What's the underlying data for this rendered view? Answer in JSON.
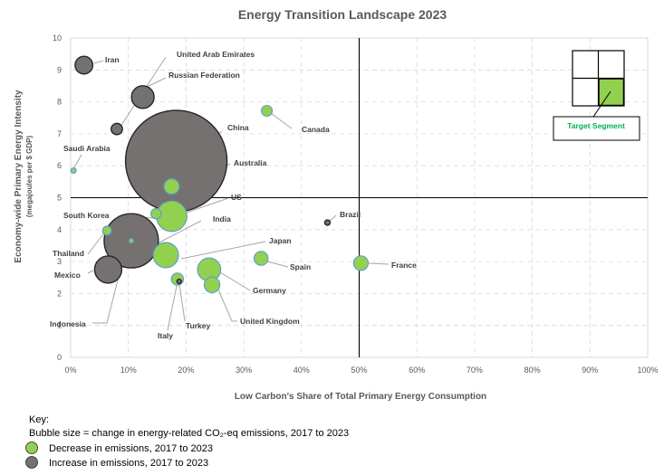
{
  "chart_data": {
    "type": "scatter",
    "title": "Energy Transition Landscape 2023",
    "xlabel": "Low Carbon's Share of Total Primary Energy Consumption",
    "ylabel": "Economy-wide Primary Energy Intensity",
    "ylabel_sub": "(megajoules per $ GDP)",
    "xlim": [
      0,
      100
    ],
    "ylim": [
      0,
      10
    ],
    "x_ticks": [
      "0%",
      "10%",
      "20%",
      "30%",
      "40%",
      "50%",
      "60%",
      "70%",
      "80%",
      "90%",
      "100%"
    ],
    "y_ticks": [
      "0",
      "1",
      "2",
      "3",
      "4",
      "5",
      "6",
      "7",
      "8",
      "9",
      "10"
    ],
    "quadrant_lines": {
      "x": 50,
      "y": 5
    },
    "grid": true,
    "colors": {
      "decrease": "#92d050",
      "increase": "#767171",
      "decrease_edge": "#5b9bd5",
      "increase_edge": "#262626",
      "target_text": "#00b050"
    },
    "series": [
      {
        "name": "Iran",
        "x": 2.3,
        "y": 9.15,
        "size": 0.32,
        "trend": "increase"
      },
      {
        "name": "United Arab Emirates",
        "x": 8.0,
        "y": 7.15,
        "size": 0.13,
        "trend": "increase"
      },
      {
        "name": "Russian Federation",
        "x": 12.5,
        "y": 8.15,
        "size": 0.52,
        "trend": "increase"
      },
      {
        "name": "Canada",
        "x": 34.0,
        "y": 7.72,
        "size": 0.12,
        "trend": "decrease"
      },
      {
        "name": "Saudi Arabia",
        "x": 0.5,
        "y": 5.85,
        "size": 0.03,
        "trend": "decrease"
      },
      {
        "name": "China",
        "x": 18.3,
        "y": 6.15,
        "size": 10.5,
        "trend": "increase"
      },
      {
        "name": "Australia",
        "x": 17.5,
        "y": 5.35,
        "size": 0.24,
        "trend": "decrease"
      },
      {
        "name": "US",
        "x": 17.5,
        "y": 4.42,
        "size": 0.95,
        "trend": "decrease"
      },
      {
        "name": "South Korea",
        "x": 14.8,
        "y": 4.5,
        "size": 0.11,
        "trend": "decrease"
      },
      {
        "name": "India",
        "x": 10.5,
        "y": 3.65,
        "size": 3.0,
        "trend": "increase"
      },
      {
        "name": "Brazil",
        "x": 44.5,
        "y": 4.22,
        "size": 0.03,
        "trend": "increase"
      },
      {
        "name": "Thailand",
        "x": 6.3,
        "y": 3.97,
        "size": 0.08,
        "trend": "decrease"
      },
      {
        "name": "Japan",
        "x": 16.5,
        "y": 3.2,
        "size": 0.65,
        "trend": "decrease"
      },
      {
        "name": "Spain",
        "x": 33.0,
        "y": 3.1,
        "size": 0.2,
        "trend": "decrease"
      },
      {
        "name": "France",
        "x": 50.3,
        "y": 2.95,
        "size": 0.22,
        "trend": "decrease"
      },
      {
        "name": "Mexico",
        "x": 6.5,
        "y": 2.75,
        "size": 0.75,
        "trend": "increase"
      },
      {
        "name": "Germany",
        "x": 24.0,
        "y": 2.75,
        "size": 0.55,
        "trend": "decrease"
      },
      {
        "name": "United Kingdom",
        "x": 24.5,
        "y": 2.27,
        "size": 0.25,
        "trend": "decrease"
      },
      {
        "name": "Italy",
        "x": 18.5,
        "y": 2.45,
        "size": 0.15,
        "trend": "decrease"
      },
      {
        "name": "Turkey",
        "x": 18.8,
        "y": 2.38,
        "size": 0.02,
        "trend": "increase"
      },
      {
        "name": "Indonesia",
        "x": 10.5,
        "y": 3.65,
        "size": 0.02,
        "trend": "decrease"
      }
    ],
    "target_label": "Target Segment",
    "legend": {
      "key_title": "Key:",
      "size_note": "Bubble size = change in energy-related CO₂-eq emissions, 2017 to 2023",
      "decrease_label": "Decrease in emissions, 2017 to 2023",
      "increase_label": "Increase in emissions, 2017 to 2023"
    }
  }
}
